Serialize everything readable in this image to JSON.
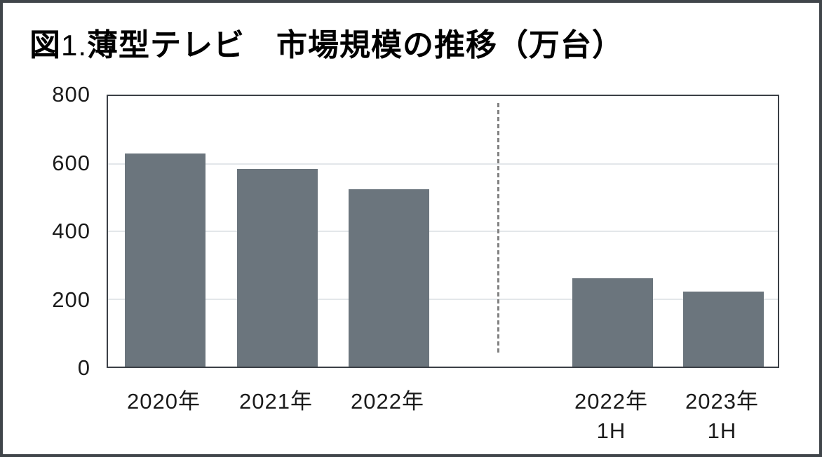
{
  "figure": {
    "title_prefix": "図",
    "title_number": "1.",
    "title_text": "薄型テレビ　市場規模の推移（万台）"
  },
  "chart_data": {
    "type": "bar",
    "title": "図1. 薄型テレビ　市場規模の推移（万台）",
    "unit": "万台",
    "categories": [
      "2020年",
      "2021年",
      "2022年",
      "2022年\n1H",
      "2023年\n1H"
    ],
    "values": [
      630,
      585,
      525,
      262,
      222
    ],
    "xlabel": "",
    "ylabel": "",
    "ylim": [
      0,
      800
    ],
    "yticks": [
      800,
      600,
      400,
      200,
      0
    ],
    "grid": "horizontal gridlines at 200/400/600",
    "legend": "none",
    "divider_after_index": 2,
    "bar_color": "#6b757d"
  },
  "colors": {
    "bar": "#6b757d",
    "frame_border": "#40454a",
    "plot_border": "#3b4046",
    "gridline": "#e3e7ea",
    "divider": "#828282",
    "title_text": "#000000",
    "axis_text": "#1b1b1b",
    "background": "#ffffff"
  }
}
